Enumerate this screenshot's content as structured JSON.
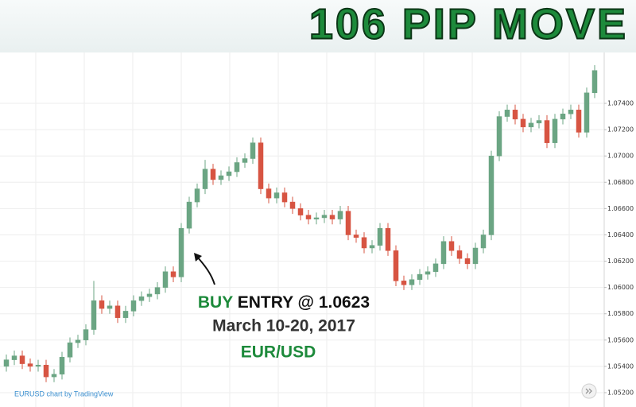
{
  "chart_data": {
    "type": "candlestick",
    "title": "106 PIP MOVE",
    "buy_label": "BUY",
    "entry_label": "ENTRY @ 1.0623",
    "date_label": "March 10-20, 2017",
    "pair_label": "EUR/USD",
    "source": "EURUSD chart by TradingView",
    "up_color": "#6ba583",
    "down_color": "#d75442",
    "grid": true,
    "ylim": [
      1.05091,
      1.07787
    ],
    "yticks": [
      {
        "value": 1.052,
        "label": "1.05200"
      },
      {
        "value": 1.054,
        "label": "1.05400"
      },
      {
        "value": 1.056,
        "label": "1.05600"
      },
      {
        "value": 1.058,
        "label": "1.05800"
      },
      {
        "value": 1.06,
        "label": "1.06000"
      },
      {
        "value": 1.062,
        "label": "1.06200"
      },
      {
        "value": 1.064,
        "label": "1.06400"
      },
      {
        "value": 1.066,
        "label": "1.06600"
      },
      {
        "value": 1.068,
        "label": "1.06800"
      },
      {
        "value": 1.07,
        "label": "1.07000"
      },
      {
        "value": 1.072,
        "label": "1.07200"
      },
      {
        "value": 1.074,
        "label": "1.07400"
      }
    ],
    "open": [
      1.054,
      1.0545,
      1.0548,
      1.0542,
      1.054,
      1.0541,
      1.0532,
      1.0534,
      1.0547,
      1.0558,
      1.056,
      1.0568,
      1.059,
      1.0584,
      1.0586,
      1.0577,
      1.0582,
      1.059,
      1.0593,
      1.0595,
      1.06,
      1.0612,
      1.0608,
      1.0645,
      1.0665,
      1.0675,
      1.069,
      1.0682,
      1.0685,
      1.0688,
      1.0695,
      1.0698,
      1.071,
      1.0675,
      1.0668,
      1.0672,
      1.0665,
      1.066,
      1.0655,
      1.0652,
      1.0653,
      1.0655,
      1.0652,
      1.0658,
      1.064,
      1.0638,
      1.063,
      1.0632,
      1.0645,
      1.0628,
      1.0605,
      1.0602,
      1.0606,
      1.061,
      1.0612,
      1.0618,
      1.0635,
      1.0628,
      1.0622,
      1.0618,
      1.063,
      1.064,
      1.07,
      1.073,
      1.0735,
      1.0728,
      1.0722,
      1.0725,
      1.0727,
      1.071,
      1.0728,
      1.0732,
      1.0735,
      1.0718,
      1.0748
    ],
    "high": [
      1.0549,
      1.0552,
      1.0552,
      1.0546,
      1.0545,
      1.0545,
      1.0538,
      1.0551,
      1.0562,
      1.0564,
      1.0572,
      1.0605,
      1.0594,
      1.059,
      1.059,
      1.0586,
      1.0594,
      1.0597,
      1.0599,
      1.0604,
      1.0616,
      1.0616,
      1.0649,
      1.0669,
      1.0679,
      1.0697,
      1.0694,
      1.0689,
      1.0692,
      1.0699,
      1.0702,
      1.0714,
      1.0714,
      1.0679,
      1.0676,
      1.0676,
      1.0669,
      1.0664,
      1.0659,
      1.0657,
      1.0659,
      1.0659,
      1.0662,
      1.0662,
      1.0644,
      1.0642,
      1.0636,
      1.0649,
      1.0649,
      1.0632,
      1.0609,
      1.061,
      1.0614,
      1.0616,
      1.0622,
      1.0639,
      1.0639,
      1.0632,
      1.0626,
      1.0634,
      1.0644,
      1.0704,
      1.0734,
      1.0739,
      1.0739,
      1.0732,
      1.0729,
      1.0731,
      1.0731,
      1.0732,
      1.0736,
      1.0739,
      1.0739,
      1.0752,
      1.0769
    ],
    "low": [
      1.0536,
      1.0541,
      1.0538,
      1.0536,
      1.0536,
      1.0528,
      1.0528,
      1.053,
      1.0543,
      1.0554,
      1.0556,
      1.0564,
      1.058,
      1.058,
      1.0573,
      1.0573,
      1.0578,
      1.0586,
      1.0589,
      1.0591,
      1.0596,
      1.0604,
      1.0604,
      1.0641,
      1.0661,
      1.0671,
      1.0678,
      1.0678,
      1.0681,
      1.0684,
      1.0691,
      1.0694,
      1.0671,
      1.0664,
      1.0664,
      1.0661,
      1.0656,
      1.0651,
      1.0648,
      1.0648,
      1.0649,
      1.0648,
      1.0648,
      1.0636,
      1.0634,
      1.0626,
      1.0626,
      1.0628,
      1.0624,
      1.0601,
      1.0598,
      1.0598,
      1.0602,
      1.0606,
      1.0608,
      1.0614,
      1.0624,
      1.0618,
      1.0614,
      1.0614,
      1.0626,
      1.0636,
      1.0696,
      1.0726,
      1.0724,
      1.0718,
      1.0718,
      1.0721,
      1.0706,
      1.0706,
      1.0724,
      1.0728,
      1.0714,
      1.0714,
      1.0744
    ],
    "close": [
      1.0545,
      1.0548,
      1.0542,
      1.054,
      1.0541,
      1.0532,
      1.0534,
      1.0547,
      1.0558,
      1.056,
      1.0568,
      1.059,
      1.0584,
      1.0586,
      1.0577,
      1.0582,
      1.059,
      1.0593,
      1.0595,
      1.06,
      1.0612,
      1.0608,
      1.0645,
      1.0665,
      1.0675,
      1.069,
      1.0682,
      1.0685,
      1.0688,
      1.0695,
      1.0698,
      1.071,
      1.0675,
      1.0668,
      1.0672,
      1.0665,
      1.066,
      1.0655,
      1.0652,
      1.0653,
      1.0655,
      1.0652,
      1.0658,
      1.064,
      1.0638,
      1.063,
      1.0632,
      1.0645,
      1.0628,
      1.0605,
      1.0602,
      1.0606,
      1.061,
      1.0612,
      1.0618,
      1.0635,
      1.0628,
      1.0622,
      1.0618,
      1.063,
      1.064,
      1.07,
      1.073,
      1.0735,
      1.0728,
      1.0722,
      1.0725,
      1.0727,
      1.071,
      1.0728,
      1.0732,
      1.0735,
      1.0718,
      1.0748,
      1.0765
    ]
  }
}
